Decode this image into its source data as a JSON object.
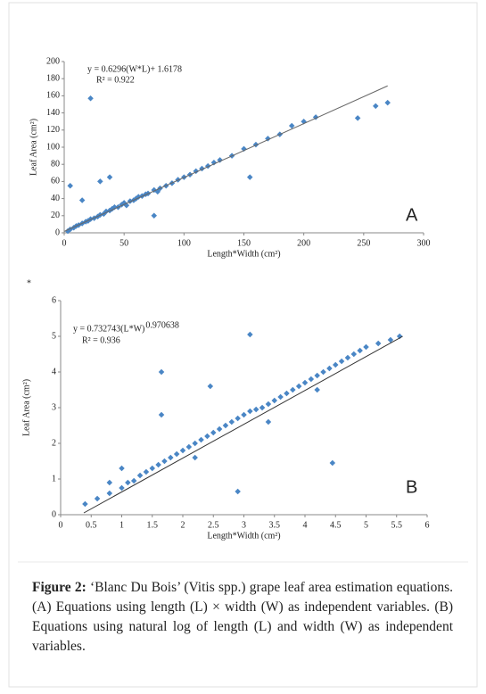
{
  "chart_data": [
    {
      "type": "scatter",
      "xlabel": "Length*Width (cm²)",
      "ylabel": "Leaf Area (cm²)",
      "annotations": [
        "y = 0.6296(W*L)+ 1.6178",
        "R² = 0.922"
      ],
      "panel": "A",
      "color": "#4a86c5",
      "x": [
        3,
        5,
        8,
        10,
        12,
        15,
        18,
        20,
        22,
        25,
        28,
        30,
        33,
        35,
        38,
        40,
        42,
        45,
        48,
        50,
        52,
        55,
        58,
        60,
        62,
        65,
        68,
        70,
        75,
        78,
        80,
        85,
        90,
        95,
        100,
        105,
        110,
        115,
        120,
        125,
        130,
        140,
        150,
        160,
        170,
        180,
        190,
        200,
        210,
        22,
        5,
        30,
        38,
        155,
        245,
        260,
        270,
        75,
        15
      ],
      "values": [
        2,
        4,
        6,
        8,
        9,
        11,
        13,
        14,
        16,
        17,
        19,
        21,
        22,
        25,
        26,
        28,
        30,
        30,
        33,
        35,
        32,
        37,
        38,
        40,
        42,
        43,
        45,
        46,
        50,
        48,
        52,
        55,
        58,
        62,
        65,
        68,
        72,
        75,
        78,
        82,
        85,
        90,
        98,
        103,
        110,
        115,
        125,
        130,
        135,
        157,
        55,
        60,
        65,
        65,
        134,
        148,
        152,
        20,
        38
      ],
      "trendline": {
        "x": [
          0,
          270
        ],
        "values": [
          1.6178,
          171.61
        ],
        "color": "#666666"
      },
      "xlim": [
        0,
        300
      ],
      "xticks": [
        0,
        50,
        100,
        150,
        200,
        250,
        300
      ],
      "ylim": [
        0,
        200
      ],
      "yticks": [
        0,
        20,
        40,
        60,
        80,
        100,
        120,
        140,
        160,
        180,
        200
      ]
    },
    {
      "type": "scatter",
      "xlabel": "Length*Width (cm²)",
      "ylabel": "Leaf Area (cm²)",
      "annotations": [
        "y = 0.732743(L*W)",
        "R² = 0.936"
      ],
      "exponent": "0.970638",
      "panel": "B",
      "color": "#4a86c5",
      "x": [
        0.4,
        0.6,
        0.8,
        1.0,
        1.1,
        1.2,
        1.3,
        1.4,
        1.5,
        1.6,
        1.7,
        1.8,
        1.9,
        2.0,
        2.1,
        2.2,
        2.3,
        2.4,
        2.5,
        2.6,
        2.7,
        2.8,
        2.9,
        3.0,
        3.1,
        3.2,
        3.3,
        3.4,
        3.5,
        3.6,
        3.7,
        3.8,
        3.9,
        4.0,
        4.1,
        4.2,
        4.3,
        4.4,
        4.5,
        4.6,
        4.7,
        4.8,
        4.9,
        5.0,
        5.2,
        5.4,
        5.55,
        3.1,
        1.65,
        2.45,
        1.65,
        2.9,
        4.45,
        1.0,
        0.8,
        2.2,
        3.4,
        4.2
      ],
      "values": [
        0.3,
        0.45,
        0.6,
        0.75,
        0.9,
        0.95,
        1.1,
        1.2,
        1.3,
        1.4,
        1.5,
        1.6,
        1.7,
        1.8,
        1.9,
        2.0,
        2.1,
        2.2,
        2.3,
        2.4,
        2.5,
        2.6,
        2.7,
        2.8,
        2.9,
        2.95,
        3.0,
        3.1,
        3.2,
        3.3,
        3.4,
        3.5,
        3.6,
        3.7,
        3.8,
        3.9,
        4.0,
        4.1,
        4.2,
        4.3,
        4.4,
        4.5,
        4.6,
        4.7,
        4.8,
        4.9,
        5.0,
        5.05,
        4.0,
        3.6,
        2.8,
        0.65,
        1.45,
        1.3,
        0.9,
        1.6,
        2.6,
        3.5
      ],
      "trendline": {
        "x": [
          0.38,
          5.6
        ],
        "values": [
          0.05,
          5.0
        ],
        "color": "#333333"
      },
      "xlim": [
        0,
        6
      ],
      "xticks": [
        0,
        0.5,
        1,
        1.5,
        2,
        2.5,
        3,
        3.5,
        4,
        4.5,
        5,
        5.5,
        6
      ],
      "ylim": [
        0,
        6
      ],
      "yticks": [
        0,
        1,
        2,
        3,
        4,
        5,
        6
      ]
    }
  ],
  "stray_mark": "*",
  "caption": {
    "label": "Figure 2:",
    "text": "‘Blanc Du Bois’ (Vitis spp.) grape leaf area estimation equations. (A) Equations using length (L) × width (W) as independent variables. (B) Equations using natural log of length (L) and width (W) as independent variables."
  }
}
